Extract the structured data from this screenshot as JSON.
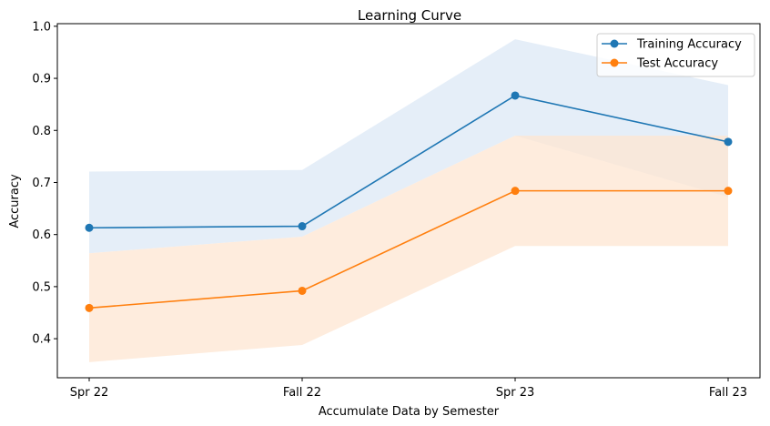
{
  "chart_data": {
    "type": "line",
    "title": "Learning Curve",
    "xlabel": "Accumulate Data by Semester",
    "ylabel": "Accuracy",
    "categories": [
      "Spr 22",
      "Fall 22",
      "Spr 23",
      "Fall 23"
    ],
    "ylim": [
      0.325,
      1.005
    ],
    "yticks": [
      "0.4",
      "0.5",
      "0.6",
      "0.7",
      "0.8",
      "0.9",
      "1.0"
    ],
    "grid": false,
    "legend_position": "top-right",
    "series": [
      {
        "name": "Training Accuracy",
        "color": "#1f77b4",
        "band_color": "#dce8f5",
        "values": [
          0.613,
          0.616,
          0.867,
          0.778
        ],
        "band_upper": [
          0.721,
          0.724,
          0.975,
          0.887
        ],
        "band_lower": [
          0.564,
          0.596,
          0.79,
          0.672
        ]
      },
      {
        "name": "Test Accuracy",
        "color": "#ff7f0e",
        "band_color": "#fde6d1",
        "values": [
          0.459,
          0.492,
          0.684,
          0.684
        ],
        "band_upper": [
          0.564,
          0.596,
          0.79,
          0.79
        ],
        "band_lower": [
          0.355,
          0.388,
          0.578,
          0.578
        ]
      }
    ]
  }
}
